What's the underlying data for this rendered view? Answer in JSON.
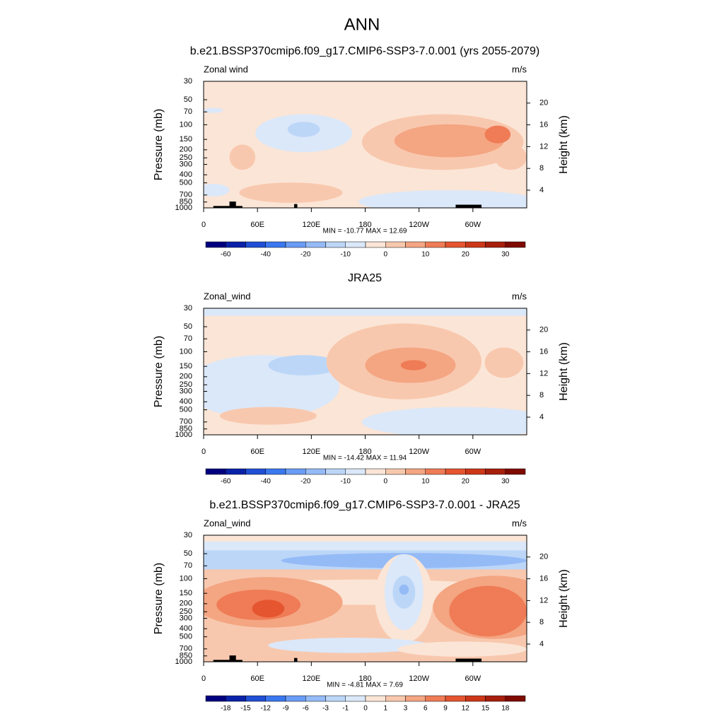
{
  "title": "ANN",
  "colors": [
    "#00007f",
    "#0a22a8",
    "#1f4fd4",
    "#3a78f0",
    "#6a9cf5",
    "#95bbf7",
    "#bcd6f8",
    "#dbe8f9",
    "#fbe5d6",
    "#f8c8ae",
    "#f4a582",
    "#ef7c56",
    "#e55530",
    "#cc3718",
    "#a71f0c",
    "#7f0a00"
  ],
  "chart_data": [
    {
      "type": "contour",
      "title": "b.e21.BSSP370cmip6.f09_g17.CMIP6-SSP3-7.0.001 (yrs 2055-2079)",
      "left_label": "Zonal wind",
      "right_label": "m/s",
      "y_label": "Pressure (mb)",
      "y2_label": "Height (km)",
      "xlim": [
        0,
        360
      ],
      "xticks": [
        0,
        {
          "value": 60,
          "label": "60E"
        },
        {
          "value": 120,
          "label": "120E"
        },
        180,
        {
          "value": 240,
          "label": "120W"
        },
        {
          "value": 300,
          "label": "60W"
        }
      ],
      "ylim": [
        1000,
        30
      ],
      "log_y": true,
      "yticks": [
        30,
        50,
        70,
        100,
        150,
        200,
        250,
        300,
        400,
        500,
        700,
        850,
        1000
      ],
      "y2lim": [
        0.75,
        24
      ],
      "y2ticks": [
        4,
        8,
        12,
        16,
        20
      ],
      "stats": "MIN = -10.77  MAX =  12.69",
      "colorbar_labels": [
        -60,
        -40,
        -20,
        -10,
        0,
        10,
        20,
        30
      ]
    },
    {
      "type": "contour",
      "title": "JRA25",
      "left_label": "Zonal_wind",
      "right_label": "m/s",
      "y_label": "Pressure (mb)",
      "y2_label": "Height (km)",
      "xlim": [
        0,
        360
      ],
      "xticks": [
        0,
        {
          "value": 60,
          "label": "60E"
        },
        {
          "value": 120,
          "label": "120E"
        },
        180,
        {
          "value": 240,
          "label": "120W"
        },
        {
          "value": 300,
          "label": "60W"
        }
      ],
      "ylim": [
        1000,
        30
      ],
      "log_y": true,
      "yticks": [
        30,
        50,
        70,
        100,
        150,
        200,
        250,
        300,
        400,
        500,
        700,
        850,
        1000
      ],
      "y2lim": [
        0.75,
        24
      ],
      "y2ticks": [
        4,
        8,
        12,
        16,
        20
      ],
      "stats": "MIN = -14.42  MAX =  11.94",
      "colorbar_labels": [
        -60,
        -40,
        -20,
        -10,
        0,
        10,
        20,
        30
      ]
    },
    {
      "type": "contour",
      "title": "b.e21.BSSP370cmip6.f09_g17.CMIP6-SSP3-7.0.001 - JRA25",
      "left_label": "Zonal_wind",
      "right_label": "m/s",
      "y_label": "Pressure (mb)",
      "y2_label": "Height (km)",
      "xlim": [
        0,
        360
      ],
      "xticks": [
        0,
        {
          "value": 60,
          "label": "60E"
        },
        {
          "value": 120,
          "label": "120E"
        },
        180,
        {
          "value": 240,
          "label": "120W"
        },
        {
          "value": 300,
          "label": "60W"
        }
      ],
      "ylim": [
        1000,
        30
      ],
      "log_y": true,
      "yticks": [
        30,
        50,
        70,
        100,
        150,
        200,
        250,
        300,
        400,
        500,
        700,
        850,
        1000
      ],
      "y2lim": [
        0.75,
        24
      ],
      "y2ticks": [
        4,
        8,
        12,
        16,
        20
      ],
      "stats": "MIN = -4.81  MAX =  7.69",
      "colorbar_labels": [
        -18,
        -15,
        -12,
        -9,
        -6,
        -3,
        -1,
        0,
        1,
        3,
        6,
        9,
        12,
        15,
        18
      ]
    }
  ]
}
